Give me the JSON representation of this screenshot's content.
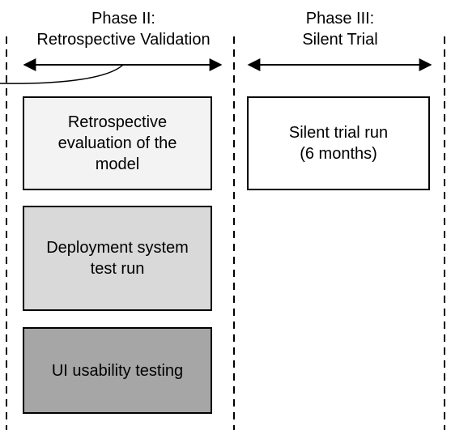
{
  "phases": [
    {
      "title_line1": "Phase II:",
      "title_line2": "Retrospective Validation"
    },
    {
      "title_line1": "Phase III:",
      "title_line2": "Silent Trial"
    }
  ],
  "boxes": [
    {
      "label": "Retrospective\nevaluation of the\nmodel",
      "fill": "#f3f3f3"
    },
    {
      "label": "Deployment system\ntest run",
      "fill": "#d9d9d9"
    },
    {
      "label": "UI usability testing",
      "fill": "#a6a6a6"
    },
    {
      "label": "Silent trial run\n(6 months)",
      "fill": "#ffffff"
    }
  ]
}
